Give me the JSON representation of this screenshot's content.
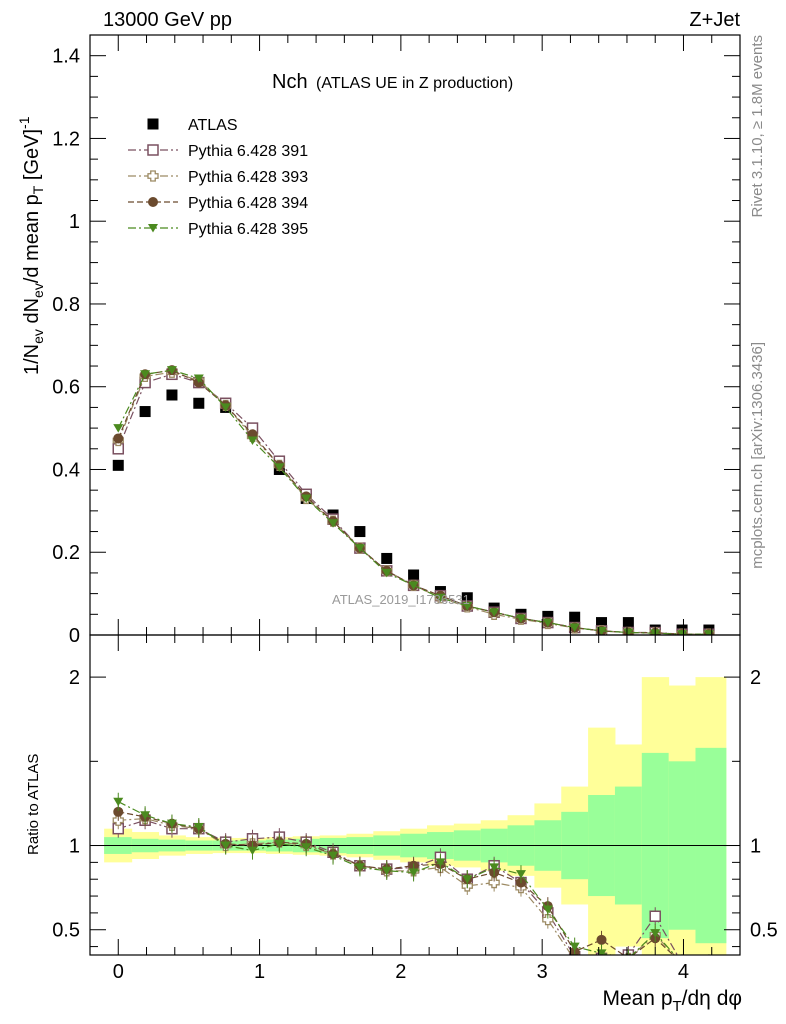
{
  "header": {
    "left": "13000 GeV pp",
    "right": "Z+Jet"
  },
  "side": {
    "rivet": "Rivet 3.1.10, ≥ 1.8M events",
    "mcplots": "mcplots.cern.ch [arXiv:1306.3436]"
  },
  "chart_data": [
    {
      "type": "scatter",
      "panel": "main",
      "title_main": "Nch",
      "title_sub": "(ATLAS UE in Z production)",
      "ylabel": "1/N_ev dN_ev/d mean p_T [GeV]^-1",
      "ylim": [
        0,
        1.45
      ],
      "yticks": [
        "0",
        "0.2",
        "0.4",
        "0.6",
        "0.8",
        "1",
        "1.2",
        "1.4"
      ],
      "watermark": "ATLAS_2019_I1736531",
      "x": [
        0.0,
        0.19,
        0.38,
        0.57,
        0.76,
        0.95,
        1.14,
        1.33,
        1.52,
        1.71,
        1.9,
        2.09,
        2.28,
        2.47,
        2.66,
        2.85,
        3.04,
        3.23,
        3.42,
        3.61,
        3.8,
        3.99,
        4.18
      ],
      "series": [
        {
          "name": "ATLAS",
          "marker": "square-filled",
          "color": "#000000",
          "line": "none",
          "values": [
            0.41,
            0.54,
            0.58,
            0.56,
            0.55,
            0.49,
            0.4,
            0.33,
            0.29,
            0.25,
            0.185,
            0.145,
            0.105,
            0.09,
            0.065,
            0.05,
            0.045,
            0.043,
            0.03,
            0.03,
            0.012,
            0.012,
            0.012
          ]
        },
        {
          "name": "Pythia 6.428 391",
          "marker": "square-open",
          "color": "#7a5060",
          "line": "dash-dot",
          "values": [
            0.45,
            0.61,
            0.63,
            0.61,
            0.56,
            0.5,
            0.42,
            0.34,
            0.28,
            0.21,
            0.155,
            0.12,
            0.095,
            0.07,
            0.055,
            0.04,
            0.03,
            0.018,
            0.01,
            0.006,
            0.006,
            0.002,
            0.002
          ]
        },
        {
          "name": "Pythia 6.428 393",
          "marker": "cross-open",
          "color": "#9c8a63",
          "line": "dash-dot",
          "values": [
            0.47,
            0.625,
            0.635,
            0.615,
            0.555,
            0.48,
            0.41,
            0.33,
            0.275,
            0.21,
            0.155,
            0.12,
            0.09,
            0.068,
            0.05,
            0.038,
            0.028,
            0.017,
            0.01,
            0.006,
            0.005,
            0.002,
            0.002
          ]
        },
        {
          "name": "Pythia 6.428 394",
          "marker": "circle-filled",
          "color": "#6b4a2e",
          "line": "dash",
          "values": [
            0.475,
            0.63,
            0.64,
            0.61,
            0.555,
            0.485,
            0.41,
            0.335,
            0.275,
            0.21,
            0.155,
            0.12,
            0.095,
            0.07,
            0.055,
            0.04,
            0.03,
            0.018,
            0.01,
            0.006,
            0.005,
            0.002,
            0.002
          ]
        },
        {
          "name": "Pythia 6.428 395",
          "marker": "triangle-down-filled",
          "color": "#4b8a1f",
          "line": "dash-dot",
          "values": [
            0.5,
            0.63,
            0.64,
            0.62,
            0.55,
            0.47,
            0.405,
            0.33,
            0.27,
            0.21,
            0.15,
            0.12,
            0.09,
            0.07,
            0.055,
            0.04,
            0.03,
            0.018,
            0.01,
            0.006,
            0.004,
            0.002,
            0.002
          ]
        }
      ]
    },
    {
      "type": "scatter",
      "panel": "ratio",
      "ylabel": "Ratio to ATLAS",
      "ylim": [
        0.35,
        2.25
      ],
      "yticks": [
        "0.5",
        "1",
        "2"
      ],
      "xlabel": "Mean p_T/dη dφ",
      "xlim": [
        -0.2,
        4.4
      ],
      "xticks": [
        "0",
        "1",
        "2",
        "3",
        "4"
      ],
      "x": [
        0.0,
        0.19,
        0.38,
        0.57,
        0.76,
        0.95,
        1.14,
        1.33,
        1.52,
        1.71,
        1.9,
        2.09,
        2.28,
        2.47,
        2.66,
        2.85,
        3.04,
        3.23,
        3.42,
        3.61,
        3.8,
        3.99,
        4.18
      ],
      "band_edges": [
        -0.1,
        0.095,
        0.285,
        0.475,
        0.665,
        0.855,
        1.045,
        1.235,
        1.425,
        1.615,
        1.805,
        1.995,
        2.185,
        2.375,
        2.565,
        2.755,
        2.945,
        3.135,
        3.325,
        3.515,
        3.705,
        3.895,
        4.085,
        4.3
      ],
      "band_stat": [
        0.05,
        0.04,
        0.035,
        0.03,
        0.03,
        0.03,
        0.035,
        0.04,
        0.045,
        0.05,
        0.06,
        0.07,
        0.08,
        0.09,
        0.1,
        0.12,
        0.15,
        0.2,
        0.3,
        0.35,
        0.55,
        0.5,
        0.58
      ],
      "band_total": [
        0.1,
        0.08,
        0.06,
        0.05,
        0.045,
        0.045,
        0.05,
        0.055,
        0.06,
        0.07,
        0.085,
        0.1,
        0.12,
        0.13,
        0.15,
        0.18,
        0.25,
        0.35,
        0.7,
        0.6,
        1.0,
        0.95,
        1.0
      ],
      "series": [
        {
          "name": "Pythia 6.428 391",
          "values": [
            1.1,
            1.15,
            1.1,
            1.1,
            1.02,
            1.04,
            1.05,
            1.02,
            0.96,
            0.88,
            0.86,
            0.87,
            0.93,
            0.8,
            0.88,
            0.78,
            0.6,
            0.34,
            0.33,
            0.35,
            0.58,
            0.3,
            0.3
          ]
        },
        {
          "name": "Pythia 6.428 393",
          "values": [
            1.15,
            1.16,
            1.12,
            1.1,
            1.0,
            1.01,
            1.02,
            1.0,
            0.95,
            0.88,
            0.85,
            0.85,
            0.87,
            0.76,
            0.78,
            0.75,
            0.56,
            0.32,
            0.32,
            0.33,
            0.47,
            0.3,
            0.3
          ]
        },
        {
          "name": "Pythia 6.428 394",
          "values": [
            1.2,
            1.17,
            1.13,
            1.1,
            1.01,
            1.0,
            1.02,
            1.01,
            0.95,
            0.88,
            0.86,
            0.88,
            0.89,
            0.8,
            0.84,
            0.78,
            0.64,
            0.37,
            0.44,
            0.33,
            0.45,
            0.3,
            0.3
          ]
        },
        {
          "name": "Pythia 6.428 395",
          "values": [
            1.26,
            1.18,
            1.13,
            1.11,
            1.0,
            0.97,
            1.01,
            0.99,
            0.94,
            0.87,
            0.85,
            0.84,
            0.9,
            0.8,
            0.87,
            0.83,
            0.62,
            0.4,
            0.36,
            0.33,
            0.48,
            0.3,
            0.3
          ]
        }
      ]
    }
  ]
}
